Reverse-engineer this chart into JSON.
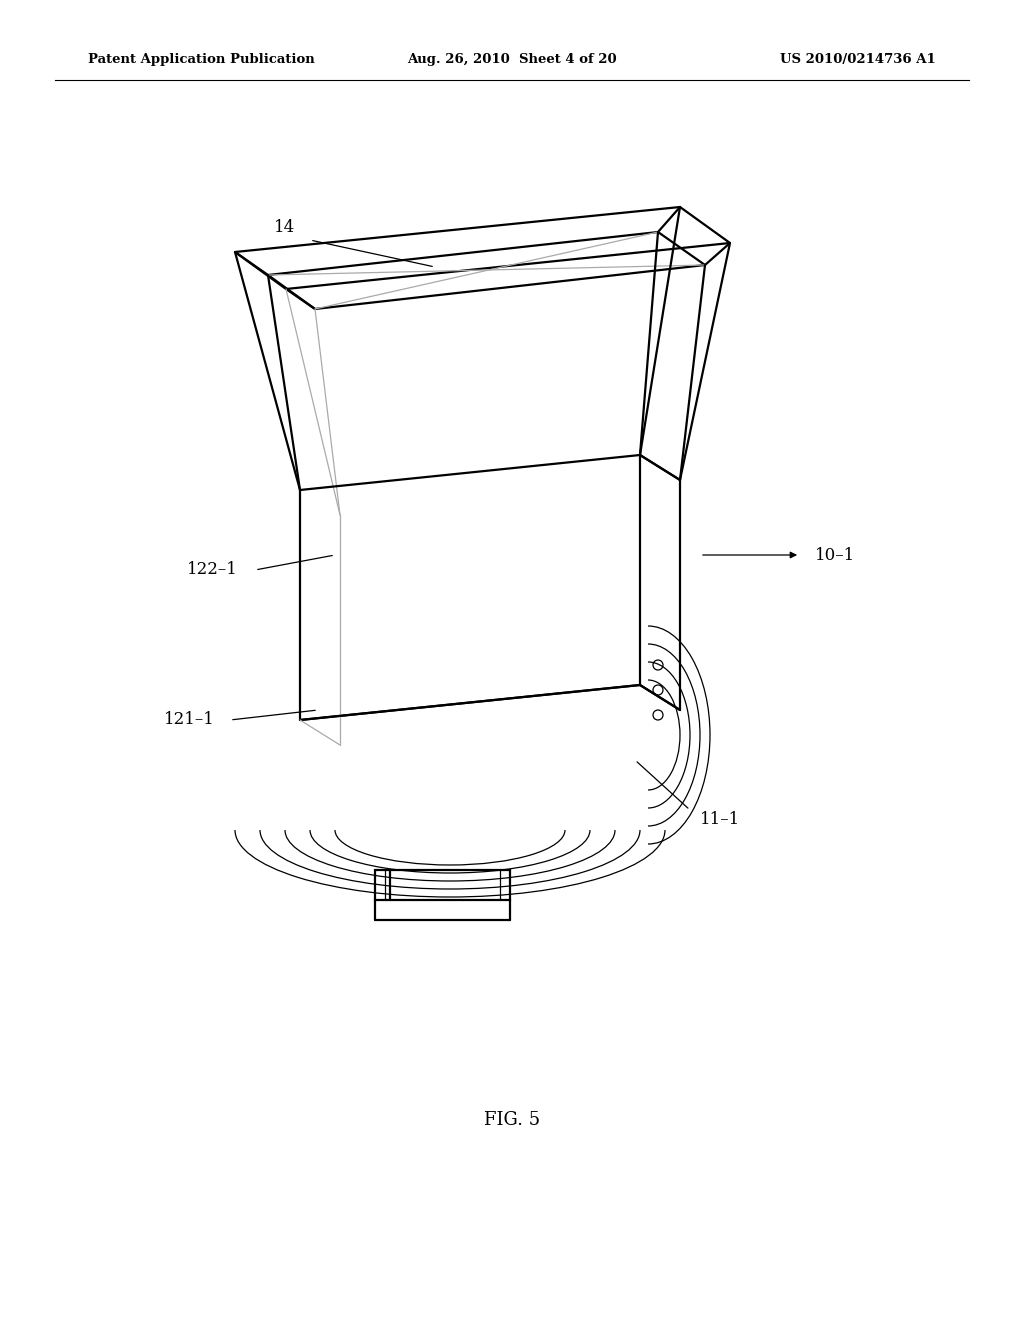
{
  "background_color": "#ffffff",
  "line_color": "#000000",
  "light_line_color": "#aaaaaa",
  "header_left": "Patent Application Publication",
  "header_center": "Aug. 26, 2010  Sheet 4 of 20",
  "header_right": "US 2010/0214736 A1",
  "figure_label": "FIG. 5"
}
